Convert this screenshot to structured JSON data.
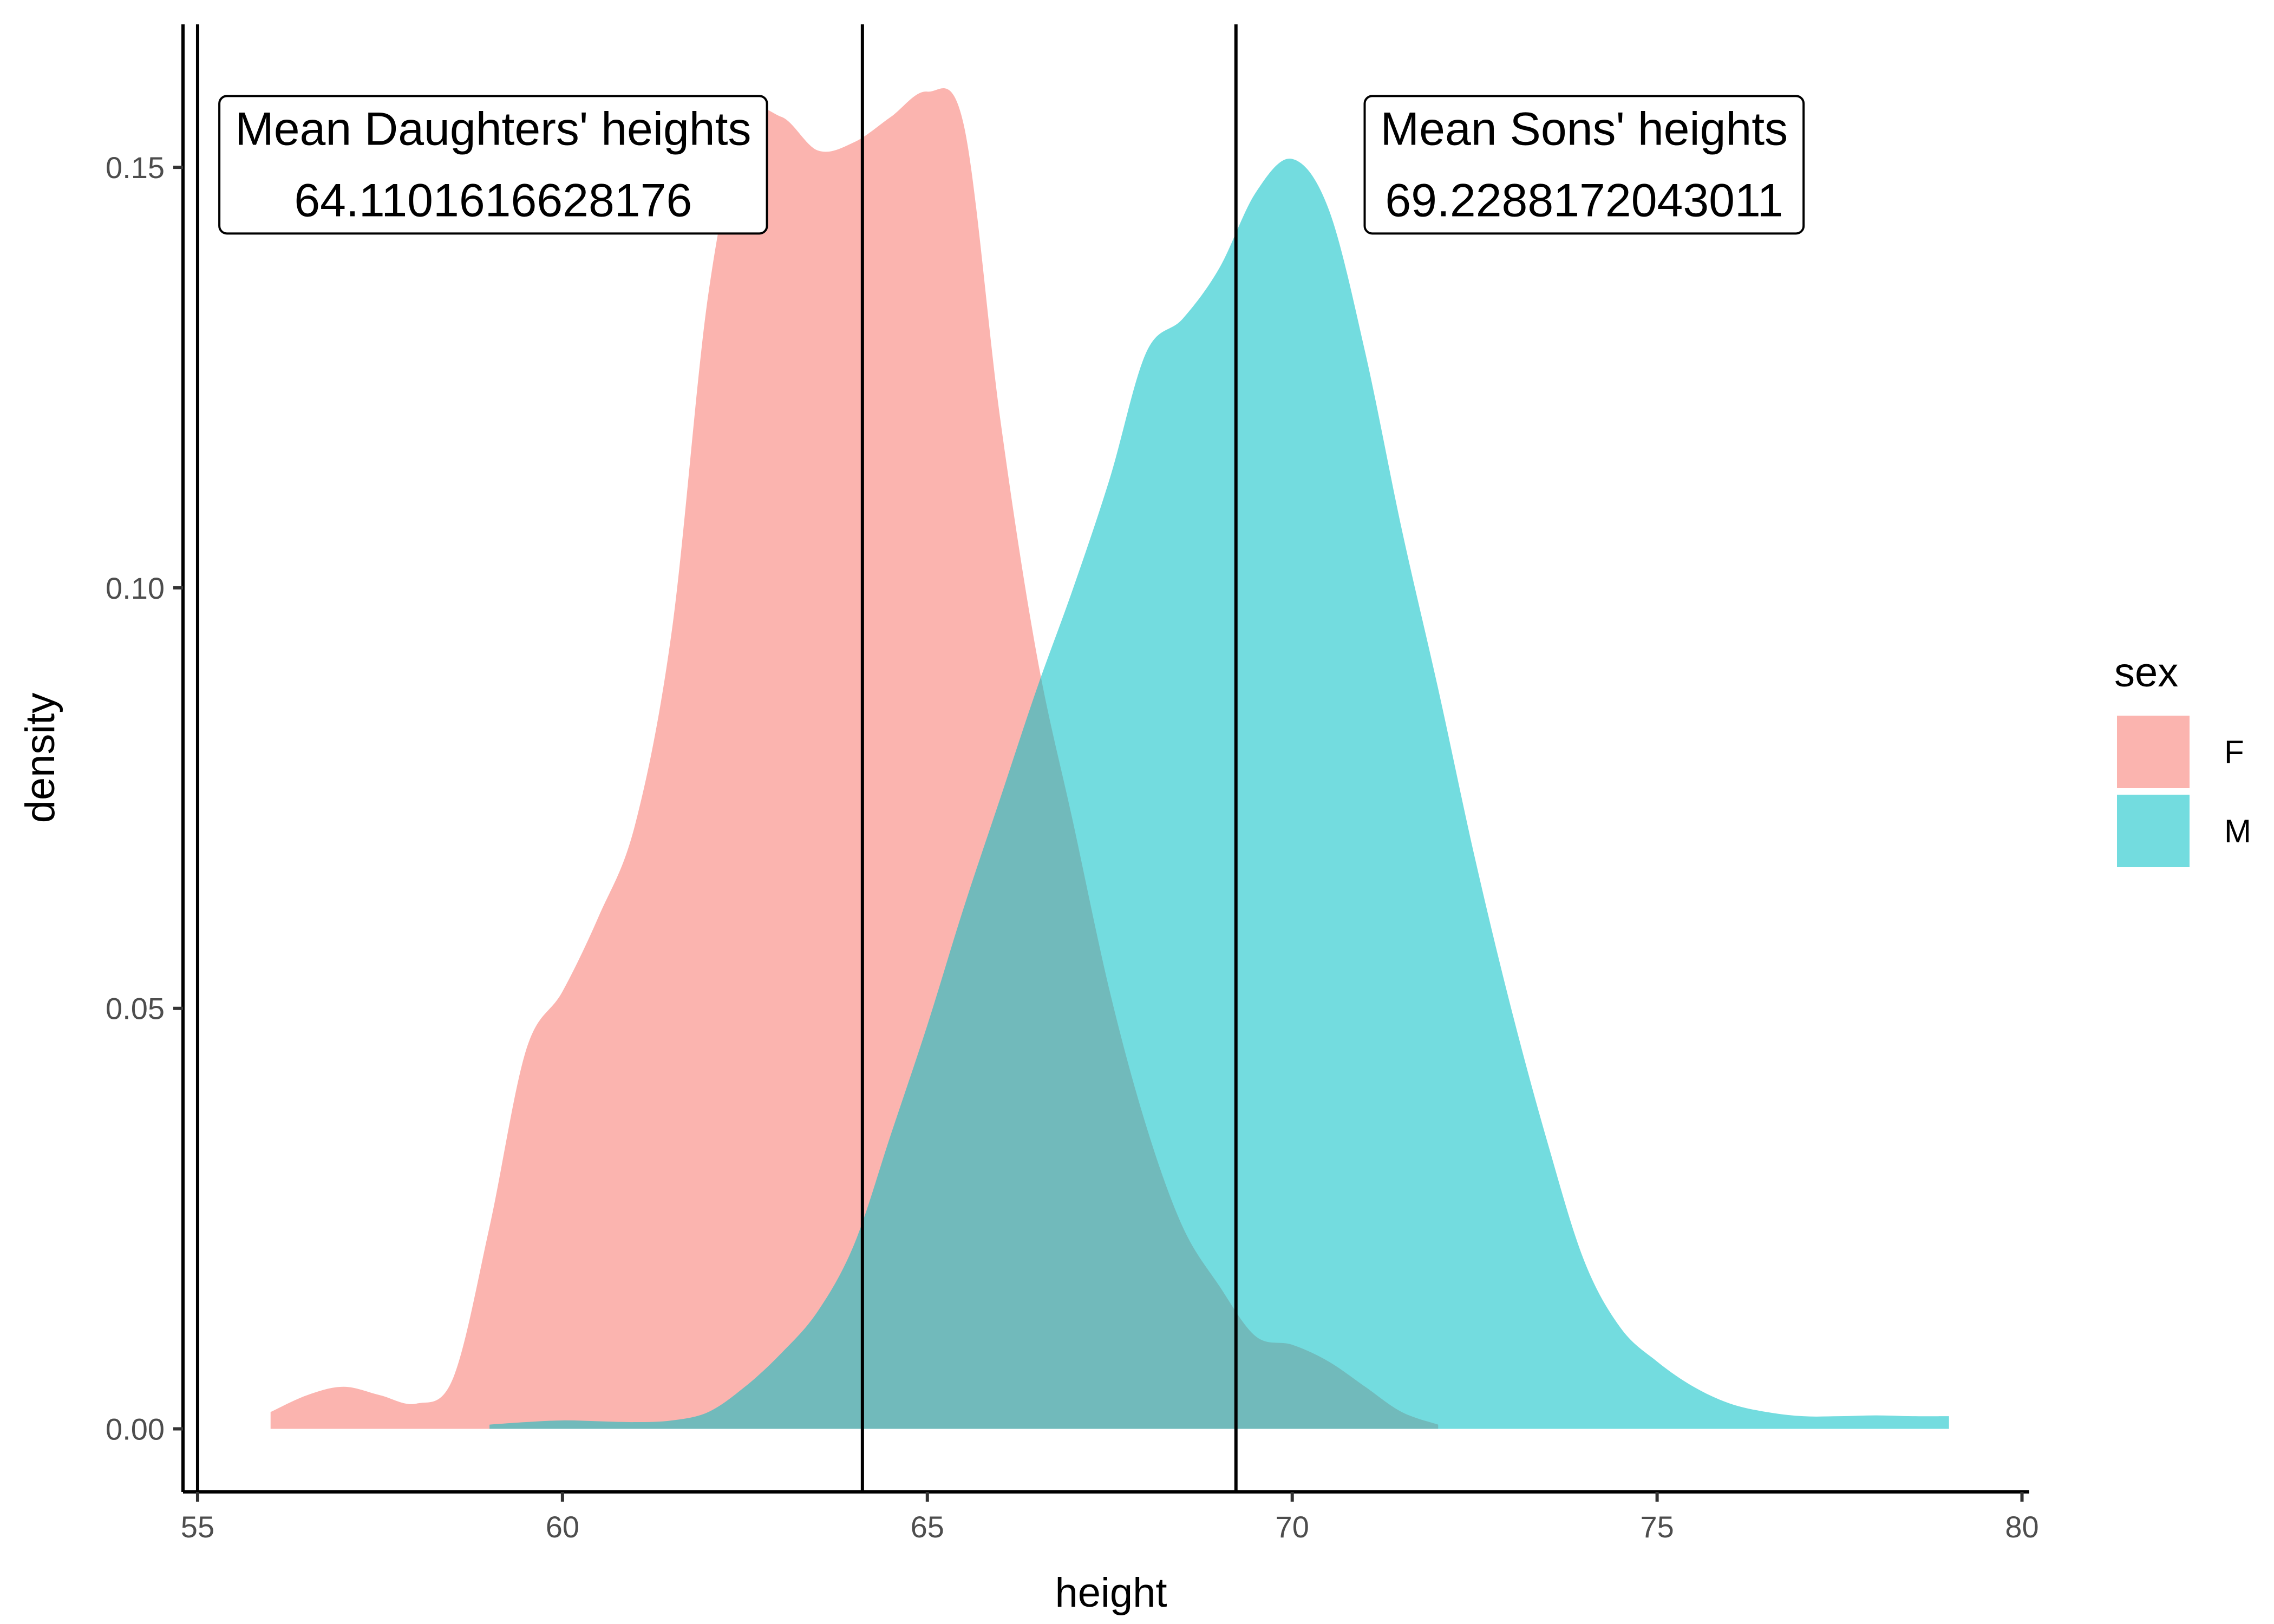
{
  "chart_data": {
    "type": "area",
    "xlabel": "height",
    "ylabel": "density",
    "xlim": [
      54.8,
      80.1
    ],
    "ylim": [
      -0.0075,
      0.167
    ],
    "x_ticks": [
      55,
      60,
      65,
      70,
      75,
      80
    ],
    "x_tick_labels": [
      "55",
      "60",
      "65",
      "70",
      "75",
      "80"
    ],
    "y_ticks": [
      0.0,
      0.05,
      0.1,
      0.15
    ],
    "y_tick_labels": [
      "0.00",
      "0.05",
      "0.10",
      "0.15"
    ],
    "grid": false,
    "legend": {
      "title": "sex",
      "placement": "right",
      "items": [
        {
          "label": "F",
          "color": "#F8766D"
        },
        {
          "label": "M",
          "color": "#00BFC4"
        }
      ]
    },
    "fill_opacity": 0.55,
    "series": [
      {
        "name": "F",
        "color": "#F8766D",
        "x": [
          56,
          56.5,
          57,
          57.5,
          58,
          58.5,
          59,
          59.5,
          60,
          60.5,
          61,
          61.5,
          62,
          62.5,
          63,
          63.5,
          64,
          64.5,
          65,
          65.5,
          66,
          66.5,
          67,
          67.5,
          68,
          68.5,
          69,
          69.5,
          70,
          70.5,
          71,
          71.5,
          72
        ],
        "values": [
          0.002,
          0.004,
          0.005,
          0.004,
          0.003,
          0.006,
          0.024,
          0.045,
          0.052,
          0.061,
          0.072,
          0.095,
          0.135,
          0.155,
          0.156,
          0.152,
          0.153,
          0.156,
          0.159,
          0.155,
          0.12,
          0.092,
          0.072,
          0.052,
          0.036,
          0.024,
          0.017,
          0.011,
          0.01,
          0.008,
          0.005,
          0.002,
          0.0005
        ]
      },
      {
        "name": "M",
        "color": "#00BFC4",
        "x": [
          59,
          59.5,
          60,
          60.5,
          61,
          61.5,
          62,
          62.5,
          63,
          63.5,
          64,
          64.5,
          65,
          65.5,
          66,
          66.5,
          67,
          67.5,
          68,
          68.5,
          69,
          69.5,
          70,
          70.5,
          71,
          71.5,
          72,
          72.5,
          73,
          73.5,
          74,
          74.5,
          75,
          75.5,
          76,
          76.5,
          77,
          77.5,
          78,
          78.5,
          79
        ],
        "values": [
          0.0005,
          0.0008,
          0.001,
          0.0009,
          0.0008,
          0.001,
          0.002,
          0.005,
          0.009,
          0.014,
          0.022,
          0.035,
          0.048,
          0.062,
          0.075,
          0.088,
          0.1,
          0.113,
          0.128,
          0.132,
          0.138,
          0.147,
          0.151,
          0.145,
          0.128,
          0.107,
          0.088,
          0.068,
          0.05,
          0.034,
          0.02,
          0.012,
          0.008,
          0.005,
          0.003,
          0.002,
          0.0015,
          0.0015,
          0.0016,
          0.0015,
          0.0015
        ]
      }
    ],
    "vlines": [
      {
        "x": 55
      },
      {
        "x": 64.1101616628176
      },
      {
        "x": 69.2288172043011
      }
    ],
    "annotations": [
      {
        "line1": "Mean Daughters' heights",
        "line2": "64.1101616628176",
        "x": 59.05,
        "y": 0.1505
      },
      {
        "line1": "Mean Sons' heights",
        "line2": "69.2288172043011",
        "x": 74.0,
        "y": 0.1505
      }
    ]
  }
}
